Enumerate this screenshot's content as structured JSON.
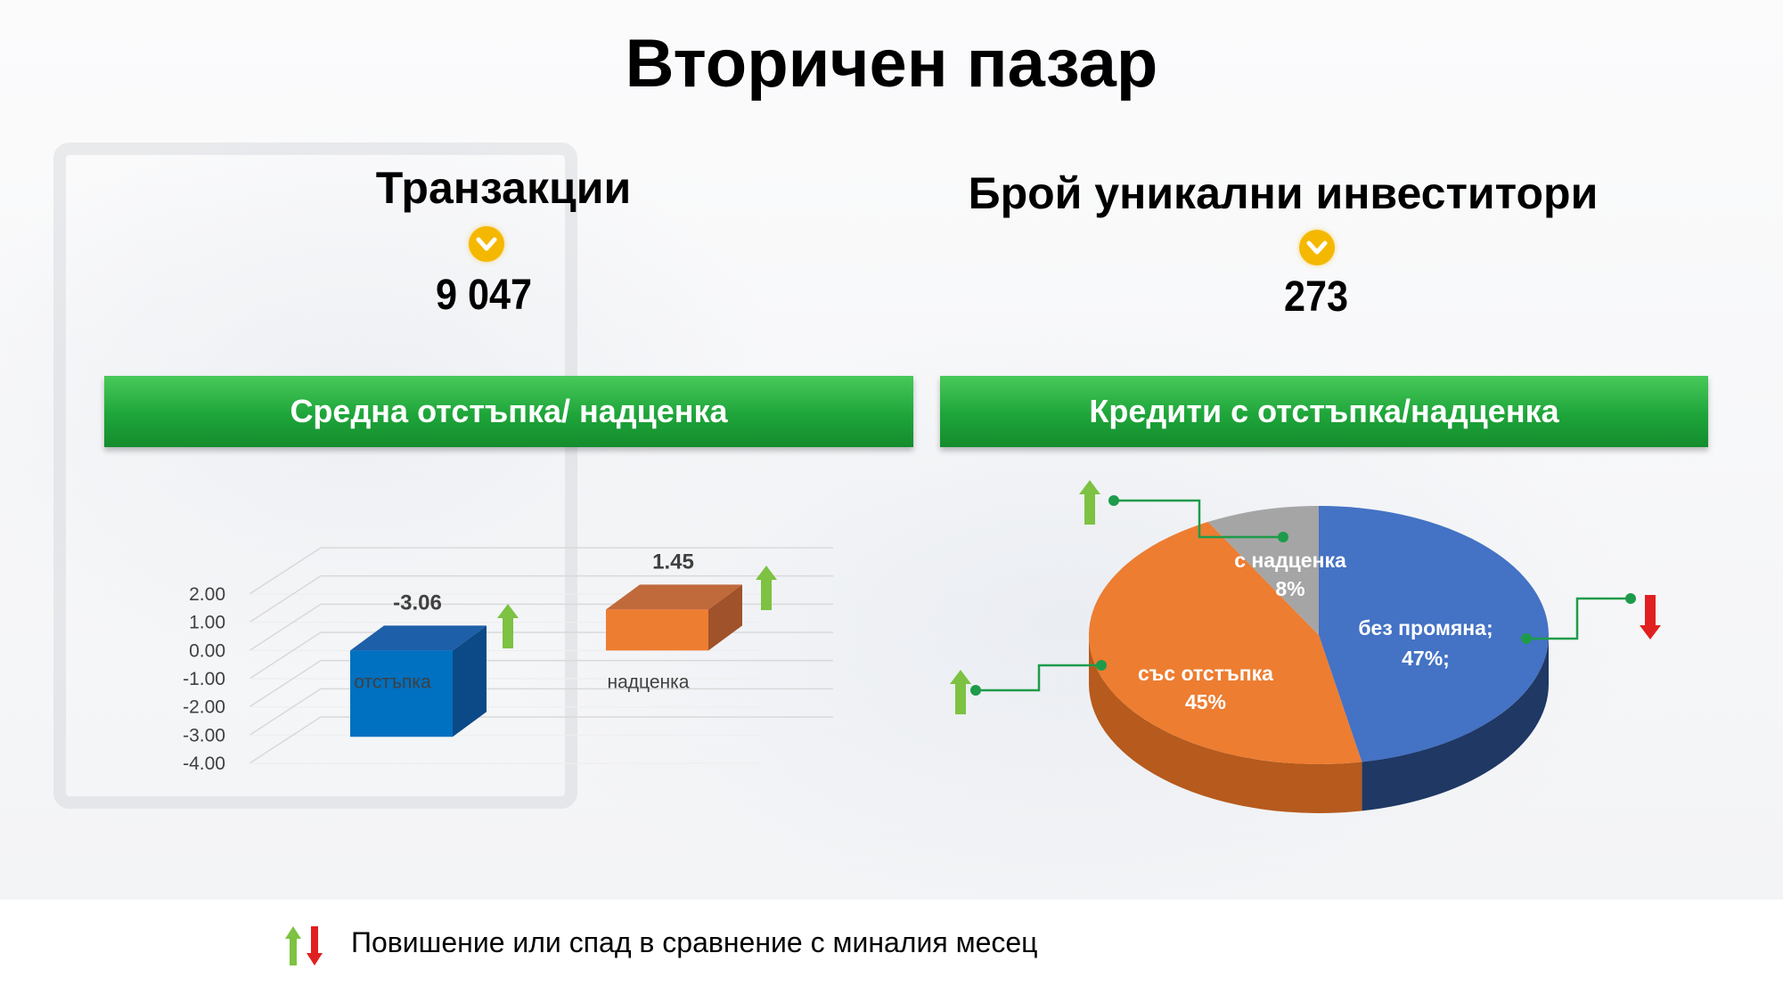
{
  "title": "Вторичен пазар",
  "kpis": [
    {
      "label": "Транзакции",
      "value": "9 047",
      "indicator": "chevron-down-icon"
    },
    {
      "label": "Брой уникални инвеститори",
      "value": "273",
      "indicator": "chevron-down-icon"
    }
  ],
  "panels": [
    {
      "label": "Средна отстъпка/ надценка"
    },
    {
      "label": "Кредити с отстъпка/надценка"
    }
  ],
  "legend": {
    "text": "Повишение или спад в сравнение с миналия месец",
    "up_color": "#7dc242",
    "down_color": "#e02020"
  },
  "colors": {
    "accent_green": "#1ea53a",
    "chevron": "#f5b800",
    "bar_discount": "#0070c0",
    "bar_premium": "#ed7d31",
    "pie_no_change": "#4472c4",
    "pie_discount": "#ed7d31",
    "pie_premium": "#a5a5a5"
  },
  "chart_data": [
    {
      "type": "bar",
      "categories": [
        "отстъпка",
        "надценка"
      ],
      "values": [
        -3.06,
        1.45
      ],
      "value_labels": [
        "-3.06",
        "1.45"
      ],
      "ytick_labels": [
        "2.00",
        "1.00",
        "0.00",
        "-1.00",
        "-2.00",
        "-3.00",
        "-4.00"
      ],
      "ylim": [
        -4,
        2
      ],
      "grid": true,
      "trend": [
        "up",
        "up"
      ]
    },
    {
      "type": "pie",
      "slices": [
        {
          "label": "без промяна;",
          "value": 47,
          "value_label": "47%;",
          "trend": "down"
        },
        {
          "label": "със отстъпка",
          "value": 45,
          "value_label": "45%",
          "trend": "up"
        },
        {
          "label": "с надценка",
          "value": 8,
          "value_label": "8%",
          "trend": "up"
        }
      ]
    }
  ]
}
